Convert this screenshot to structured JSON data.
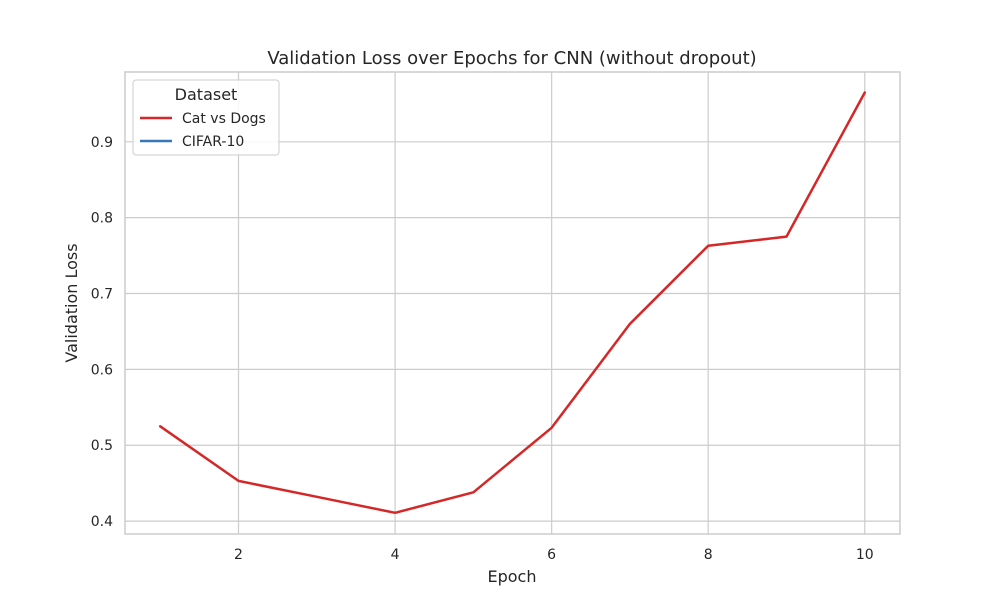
{
  "chart_data": {
    "type": "line",
    "title": "Validation Loss over Epochs for CNN (without dropout)",
    "xlabel": "Epoch",
    "ylabel": "Validation Loss",
    "xlim": [
      0.55,
      10.45
    ],
    "ylim": [
      0.383,
      0.992
    ],
    "xticks": [
      2,
      4,
      6,
      8,
      10
    ],
    "yticks": [
      0.4,
      0.5,
      0.6,
      0.7,
      0.8,
      0.9
    ],
    "grid": true,
    "legend": {
      "title": "Dataset",
      "placement": "top-left",
      "entries": [
        "Cat vs Dogs",
        "CIFAR-10"
      ]
    },
    "series": [
      {
        "name": "Cat vs Dogs",
        "color": "#d62728",
        "x": [
          1,
          2,
          3,
          4,
          5,
          6,
          7,
          8,
          9,
          10
        ],
        "y": [
          0.525,
          0.453,
          0.432,
          0.411,
          0.438,
          0.523,
          0.66,
          0.763,
          0.775,
          0.965
        ]
      },
      {
        "name": "CIFAR-10",
        "color": "#3a78b5",
        "x": [],
        "y": []
      }
    ]
  }
}
